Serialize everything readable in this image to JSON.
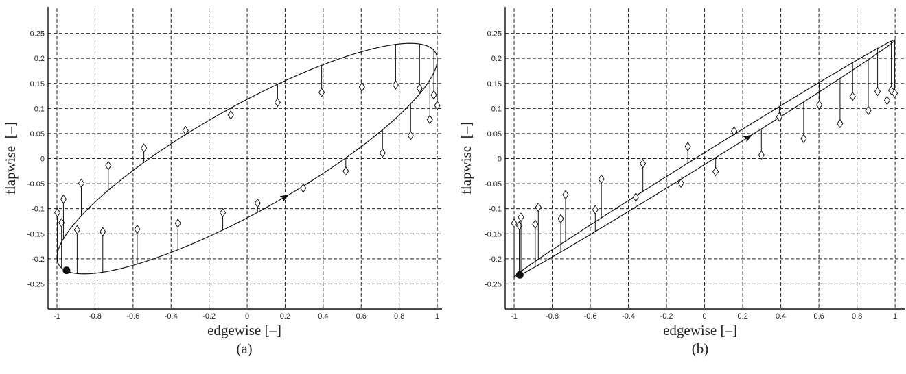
{
  "chart_data": [
    {
      "type": "scatter",
      "panel_label": "(a)",
      "xlabel": "edgewise [–]",
      "ylabel": "flapwise  [–]",
      "xlim": [
        -1.047,
        1.025
      ],
      "ylim": [
        -0.3,
        0.3
      ],
      "xticks": [
        "-1",
        "-0.8",
        "-0.6",
        "-0.4",
        "-0.2",
        "0",
        "0.2",
        "0.4",
        "0.6",
        "0.8",
        "1"
      ],
      "yticks": [
        "0.25",
        "0.2",
        "0.15",
        "0.1",
        "0.05",
        "0",
        "-0.05",
        "-0.1",
        "-0.15",
        "-0.2",
        "-0.25"
      ],
      "grid": true,
      "reference_curve": {
        "shape": "ellipse",
        "amplitude": 0.23,
        "phase_rad": 0.54,
        "start_point": [
          -0.95,
          -0.223
        ],
        "arrow_at_x": 0.22
      },
      "points": [
        {
          "x": -0.998,
          "y": -0.108,
          "stem_to": "lower"
        },
        {
          "x": -0.976,
          "y": -0.128,
          "stem_to": "lower"
        },
        {
          "x": -0.966,
          "y": -0.081,
          "stem_to": "upper"
        },
        {
          "x": -0.894,
          "y": -0.142,
          "stem_to": "lower"
        },
        {
          "x": -0.872,
          "y": -0.049,
          "stem_to": "upper"
        },
        {
          "x": -0.759,
          "y": -0.146,
          "stem_to": "lower"
        },
        {
          "x": -0.73,
          "y": -0.014,
          "stem_to": "upper"
        },
        {
          "x": -0.578,
          "y": -0.141,
          "stem_to": "lower"
        },
        {
          "x": -0.543,
          "y": 0.021,
          "stem_to": "upper"
        },
        {
          "x": -0.364,
          "y": -0.129,
          "stem_to": "lower"
        },
        {
          "x": -0.324,
          "y": 0.056,
          "stem_to": "upper"
        },
        {
          "x": -0.128,
          "y": -0.108,
          "stem_to": "lower"
        },
        {
          "x": -0.086,
          "y": 0.087,
          "stem_to": "upper"
        },
        {
          "x": 0.055,
          "y": -0.089,
          "stem_to": "lower"
        },
        {
          "x": 0.16,
          "y": 0.112,
          "stem_to": "upper"
        },
        {
          "x": 0.295,
          "y": -0.059,
          "stem_to": "lower"
        },
        {
          "x": 0.392,
          "y": 0.132,
          "stem_to": "upper"
        },
        {
          "x": 0.519,
          "y": -0.025,
          "stem_to": "lower"
        },
        {
          "x": 0.604,
          "y": 0.143,
          "stem_to": "upper"
        },
        {
          "x": 0.712,
          "y": 0.011,
          "stem_to": "lower"
        },
        {
          "x": 0.781,
          "y": 0.147,
          "stem_to": "upper"
        },
        {
          "x": 0.86,
          "y": 0.046,
          "stem_to": "lower"
        },
        {
          "x": 0.907,
          "y": 0.14,
          "stem_to": "upper"
        },
        {
          "x": 0.961,
          "y": 0.078,
          "stem_to": "lower"
        },
        {
          "x": 0.982,
          "y": 0.127,
          "stem_to": "upper"
        },
        {
          "x": 1.0,
          "y": 0.106,
          "stem_to": "upper"
        }
      ]
    },
    {
      "type": "scatter",
      "panel_label": "(b)",
      "xlabel": "edgewise [–]",
      "ylabel": "flapwise  [–]",
      "xlim": [
        -1.047,
        1.05
      ],
      "ylim": [
        -0.3,
        0.3
      ],
      "xticks": [
        "-1",
        "-0.8",
        "-0.6",
        "-0.4",
        "-0.2",
        "0",
        "0.2",
        "0.4",
        "0.6",
        "0.8",
        "1"
      ],
      "yticks": [
        "0.25",
        "0.2",
        "0.15",
        "0.1",
        "0.05",
        "0",
        "-0.05",
        "-0.1",
        "-0.15",
        "-0.2",
        "-0.25"
      ],
      "grid": true,
      "reference_curve": {
        "shape": "ellipse",
        "amplitude": 0.237,
        "phase_rad": 0.05,
        "start_point": [
          -0.97,
          -0.232
        ],
        "arrow_at_x": 0.25
      },
      "points": [
        {
          "x": -1.0,
          "y": -0.129,
          "stem_to": "lower"
        },
        {
          "x": -0.973,
          "y": -0.134,
          "stem_to": "lower"
        },
        {
          "x": -0.964,
          "y": -0.117,
          "stem_to": "upper"
        },
        {
          "x": -0.889,
          "y": -0.131,
          "stem_to": "lower"
        },
        {
          "x": -0.873,
          "y": -0.097,
          "stem_to": "upper"
        },
        {
          "x": -0.755,
          "y": -0.12,
          "stem_to": "lower"
        },
        {
          "x": -0.73,
          "y": -0.072,
          "stem_to": "upper"
        },
        {
          "x": -0.574,
          "y": -0.102,
          "stem_to": "lower"
        },
        {
          "x": -0.542,
          "y": -0.041,
          "stem_to": "upper"
        },
        {
          "x": -0.361,
          "y": -0.077,
          "stem_to": "lower"
        },
        {
          "x": -0.324,
          "y": -0.01,
          "stem_to": "upper"
        },
        {
          "x": -0.124,
          "y": -0.049,
          "stem_to": "lower"
        },
        {
          "x": -0.088,
          "y": 0.024,
          "stem_to": "upper"
        },
        {
          "x": 0.058,
          "y": -0.026,
          "stem_to": "lower"
        },
        {
          "x": 0.155,
          "y": 0.055,
          "stem_to": "upper"
        },
        {
          "x": 0.298,
          "y": 0.007,
          "stem_to": "lower"
        },
        {
          "x": 0.392,
          "y": 0.083,
          "stem_to": "upper"
        },
        {
          "x": 0.52,
          "y": 0.04,
          "stem_to": "lower"
        },
        {
          "x": 0.602,
          "y": 0.107,
          "stem_to": "upper"
        },
        {
          "x": 0.711,
          "y": 0.07,
          "stem_to": "lower"
        },
        {
          "x": 0.777,
          "y": 0.124,
          "stem_to": "upper"
        },
        {
          "x": 0.859,
          "y": 0.096,
          "stem_to": "lower"
        },
        {
          "x": 0.908,
          "y": 0.134,
          "stem_to": "upper"
        },
        {
          "x": 0.958,
          "y": 0.116,
          "stem_to": "lower"
        },
        {
          "x": 0.98,
          "y": 0.136,
          "stem_to": "upper"
        },
        {
          "x": 0.998,
          "y": 0.13,
          "stem_to": "upper"
        }
      ]
    }
  ]
}
